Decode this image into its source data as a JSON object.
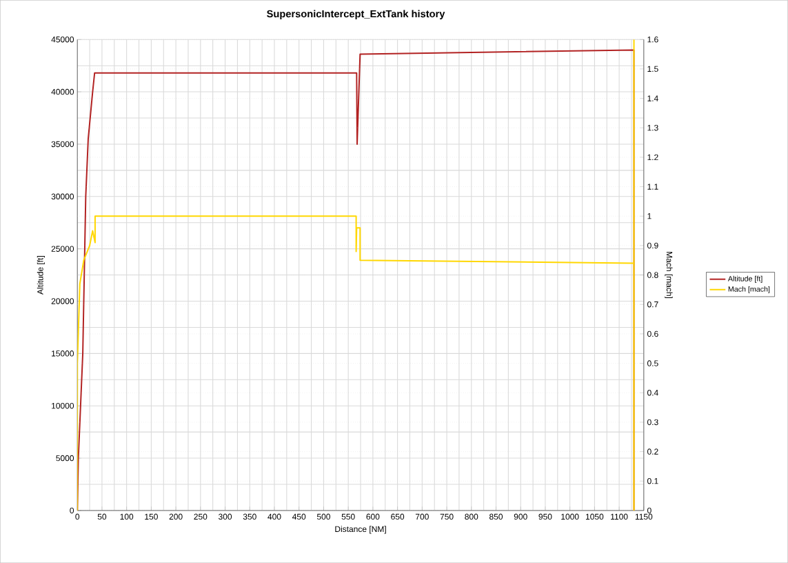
{
  "chart_data": {
    "type": "line",
    "title": "SupersonicIntercept_ExtTank  history",
    "xlabel": "Distance  [NM]",
    "ylabel": "Altitude  [ft]",
    "y2label": "Mach [mach]",
    "xlim": [
      0,
      1150
    ],
    "xticks": [
      0,
      50,
      100,
      150,
      200,
      250,
      300,
      350,
      400,
      450,
      500,
      550,
      600,
      650,
      700,
      750,
      800,
      850,
      900,
      950,
      1000,
      1050,
      1100,
      1150
    ],
    "ylim": [
      0,
      45000
    ],
    "yticks": [
      0,
      5000,
      10000,
      15000,
      20000,
      25000,
      30000,
      35000,
      40000,
      45000
    ],
    "y2lim": [
      0,
      1.6
    ],
    "y2ticks": [
      0,
      0.1,
      0.2,
      0.3,
      0.4,
      0.5,
      0.6,
      0.7,
      0.8,
      0.9,
      1,
      1.1,
      1.2,
      1.3,
      1.4,
      1.5,
      1.6
    ],
    "grid": true,
    "legend": "right",
    "marker": "none",
    "line_style": "solid",
    "series": [
      {
        "name": "Altitude  [ft]",
        "color": "#b22222",
        "x": [
          0,
          2,
          11,
          17,
          22,
          31,
          35,
          567,
          568,
          574,
          1130,
          1130
        ],
        "values": [
          0,
          5000,
          15000,
          30000,
          35500,
          40000,
          41800,
          41800,
          35000,
          43600,
          44000,
          0
        ]
      },
      {
        "name": "Mach [mach]",
        "color": "#ffd700",
        "axis": "y2",
        "x": [
          0,
          0,
          5,
          13,
          25,
          31,
          36,
          36,
          566,
          566,
          567,
          574,
          574,
          1130,
          1130,
          1130
        ],
        "values": [
          0,
          0.5,
          0.77,
          0.85,
          0.9,
          0.95,
          0.91,
          1.0,
          1.0,
          0.88,
          0.96,
          0.96,
          0.85,
          0.84,
          0,
          1.6
        ]
      }
    ]
  }
}
